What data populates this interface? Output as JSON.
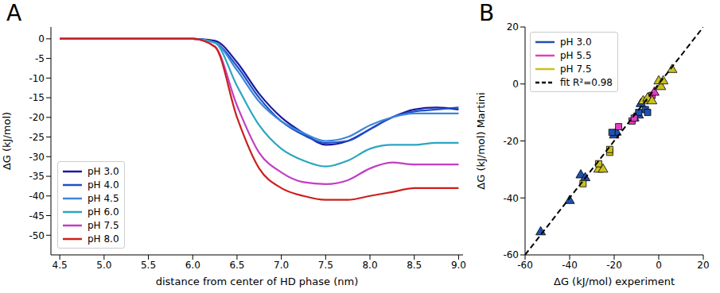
{
  "chart_data": [
    {
      "type": "line",
      "panel_label": "A",
      "x_label": "distance from center of HD phase (nm)",
      "y_label": "ΔG (kJ/mol)",
      "x": [
        4.5,
        5.0,
        5.5,
        6.0,
        6.25,
        6.5,
        6.75,
        7.0,
        7.25,
        7.5,
        7.75,
        8.0,
        8.25,
        8.5,
        8.75,
        9.0
      ],
      "series": [
        {
          "name": "pH 3.0",
          "color": "#1a1aa0",
          "values": [
            0,
            0,
            0,
            0,
            -0.5,
            -6,
            -14,
            -20,
            -24,
            -27,
            -26,
            -23,
            -20,
            -18,
            -17.5,
            -18
          ]
        },
        {
          "name": "pH 4.0",
          "color": "#1f4fc8",
          "values": [
            0,
            0,
            0,
            0,
            -1,
            -7,
            -15,
            -21,
            -24.5,
            -26.5,
            -26,
            -23,
            -20,
            -18.5,
            -18,
            -17.5
          ]
        },
        {
          "name": "pH 4.5",
          "color": "#3c86dc",
          "values": [
            0,
            0,
            0,
            0,
            -1,
            -8,
            -16,
            -21,
            -24,
            -26,
            -25,
            -22,
            -20,
            -19,
            -19,
            -19
          ]
        },
        {
          "name": "pH 6.0",
          "color": "#2aa6c2",
          "values": [
            0,
            0,
            0,
            0,
            -1,
            -12,
            -22,
            -28,
            -31,
            -32.5,
            -31,
            -28,
            -27,
            -27,
            -26.5,
            -26.5
          ]
        },
        {
          "name": "pH 7.5",
          "color": "#c23ec2",
          "values": [
            0,
            0,
            0,
            0,
            -2,
            -17,
            -29,
            -34,
            -36.5,
            -37,
            -36,
            -33,
            -31.5,
            -32,
            -32,
            -32
          ]
        },
        {
          "name": "pH 8.0",
          "color": "#cc1f1f",
          "values": [
            0,
            0,
            0,
            0,
            -2,
            -20,
            -33,
            -38,
            -40,
            -41,
            -41,
            -40,
            -39,
            -38,
            -38,
            -38
          ]
        }
      ],
      "xlim": [
        4.4,
        9.05
      ],
      "ylim": [
        -55,
        3
      ],
      "xticks": [
        4.5,
        {
          "value": 5,
          "label": "5.0"
        },
        5.5,
        {
          "value": 6,
          "label": "6.0"
        },
        6.5,
        {
          "value": 7,
          "label": "7.0"
        },
        7.5,
        {
          "value": 8,
          "label": "8.0"
        },
        8.5,
        {
          "value": 9,
          "label": "9.0"
        }
      ],
      "yticks": [
        0,
        -5,
        -10,
        -15,
        -20,
        -25,
        -30,
        -35,
        -40,
        -45,
        -50
      ],
      "legend": "lower left"
    },
    {
      "type": "scatter",
      "panel_label": "B",
      "x_label": "ΔG (kJ/mol) experiment",
      "y_label": "ΔG (kJ/mol) Martini",
      "series": [
        {
          "name": "pH 3.0",
          "color": "#2050b0",
          "marker": "triangle",
          "x": [
            -53,
            -40,
            -35,
            -33,
            -20,
            -19,
            -11,
            -9,
            -8
          ],
          "y": [
            -52,
            -41,
            -32,
            -33,
            -18,
            -17,
            -12,
            -11,
            -7
          ]
        },
        {
          "name": "pH 3.0",
          "color": "#2050b0",
          "marker": "square",
          "x": [
            -21,
            -9,
            -6,
            -5
          ],
          "y": [
            -17,
            -10,
            -9,
            -10
          ]
        },
        {
          "name": "pH 5.5",
          "color": "#e040c0",
          "marker": "square",
          "x": [
            -18,
            -12,
            -11,
            -3
          ],
          "y": [
            -15,
            -13,
            -12,
            -4
          ]
        },
        {
          "name": "pH 5.5",
          "color": "#e040c0",
          "marker": "triangle",
          "x": [
            -2
          ],
          "y": [
            -3
          ]
        },
        {
          "name": "pH 7.5",
          "color": "#c8c020",
          "marker": "triangle",
          "x": [
            -27,
            -25,
            -7,
            -5,
            -3,
            0,
            1,
            2,
            6
          ],
          "y": [
            -30,
            -30,
            -6,
            -5,
            -6,
            1,
            -1,
            1,
            5
          ]
        },
        {
          "name": "pH 7.5",
          "color": "#c8c020",
          "marker": "square",
          "x": [
            -34,
            -27,
            -22,
            -22
          ],
          "y": [
            -35,
            -28,
            -24,
            -23
          ]
        },
        {
          "name": "fit R²=0.98",
          "type": "line",
          "line_style": "dashed",
          "color": "#000000",
          "x": [
            -60,
            20
          ],
          "y": [
            -60,
            20
          ]
        }
      ],
      "xlim": [
        -60,
        20
      ],
      "ylim": [
        -60,
        20
      ],
      "xticks": [
        -60,
        -40,
        -20,
        0,
        20
      ],
      "yticks": [
        -60,
        -40,
        -20,
        0,
        20
      ],
      "legend": "upper left"
    }
  ]
}
